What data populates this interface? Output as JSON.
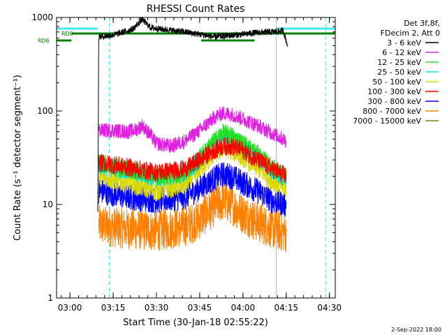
{
  "chart_data": {
    "type": "line",
    "title": "RHESSI Count Rates",
    "xlabel": "Start Time (30-Jan-18 02:55:22)",
    "ylabel": "Count Rate (s⁻¹ detector segment⁻¹)",
    "y_scale": "log",
    "ylim": [
      1,
      1000
    ],
    "xlim": [
      "02:55:22",
      "04:32:00"
    ],
    "x_ticks": [
      "03:00",
      "03:15",
      "03:30",
      "03:45",
      "04:00",
      "04:15",
      "04:30"
    ],
    "y_ticks": [
      "1",
      "10",
      "100",
      "1000"
    ],
    "footer_date": "2-Sep-2022 18:00",
    "legend": {
      "placement": "right",
      "header": [
        "Det 3f,8f,",
        "FDecim 2, Att 0"
      ],
      "entries": [
        {
          "label": "3 - 6 keV",
          "color": "#000000"
        },
        {
          "label": "6 - 12 keV",
          "color": "#e020e0"
        },
        {
          "label": "12 - 25 keV",
          "color": "#20e020"
        },
        {
          "label": "25 - 50 keV",
          "color": "#00e0e0"
        },
        {
          "label": "50 - 100 keV",
          "color": "#d8d800"
        },
        {
          "label": "100 - 300 keV",
          "color": "#ff0000"
        },
        {
          "label": "300 - 800 keV",
          "color": "#0000ff"
        },
        {
          "label": "800 - 7000 keV",
          "color": "#ff8000"
        },
        {
          "label": "7000 - 15000 keV",
          "color": "#808000"
        }
      ]
    },
    "annotations": [
      {
        "text": "RD0",
        "color": "#008000"
      },
      {
        "text": "RD6",
        "color": "#008000"
      }
    ],
    "series": [
      {
        "name": "3 - 6 keV",
        "color": "#000000",
        "x": [
          "03:09:40",
          "03:10:00",
          "03:15:00",
          "03:20:00",
          "03:22:00",
          "03:25:00",
          "03:28:00",
          "03:30:00",
          "03:40:00",
          "03:50:00",
          "04:00:00",
          "04:05:00",
          "04:10:00",
          "04:14:00",
          "04:15:30"
        ],
        "y": [
          8,
          620,
          650,
          720,
          760,
          950,
          780,
          760,
          700,
          620,
          660,
          690,
          700,
          720,
          500
        ]
      },
      {
        "name": "6 - 12 keV",
        "color": "#e020e0",
        "x": [
          "03:10:00",
          "03:15:00",
          "03:20:00",
          "03:23:00",
          "03:25:00",
          "03:28:00",
          "03:30:00",
          "03:35:00",
          "03:40:00",
          "03:45:00",
          "03:50:00",
          "03:53:00",
          "03:56:00",
          "04:00:00",
          "04:05:00",
          "04:10:00",
          "04:15:00"
        ],
        "y": [
          62,
          62,
          60,
          63,
          70,
          55,
          45,
          42,
          48,
          62,
          85,
          95,
          92,
          82,
          70,
          58,
          48
        ]
      },
      {
        "name": "12 - 25 keV",
        "color": "#20e020",
        "x": [
          "03:10:00",
          "03:20:00",
          "03:30:00",
          "03:40:00",
          "03:45:00",
          "03:50:00",
          "03:53:00",
          "03:56:00",
          "04:00:00",
          "04:05:00",
          "04:10:00",
          "04:15:00"
        ],
        "y": [
          28,
          24,
          20,
          22,
          32,
          48,
          58,
          55,
          45,
          35,
          25,
          20
        ]
      },
      {
        "name": "25 - 50 keV",
        "color": "#00e0e0",
        "x": [
          "03:10:00",
          "03:20:00",
          "03:30:00",
          "03:40:00",
          "03:45:00",
          "03:50:00",
          "03:53:00",
          "03:56:00",
          "04:00:00",
          "04:05:00",
          "04:10:00",
          "04:15:00"
        ],
        "y": [
          26,
          23,
          19,
          21,
          30,
          44,
          52,
          50,
          42,
          33,
          23,
          19
        ]
      },
      {
        "name": "50 - 100 keV",
        "color": "#d8d800",
        "x": [
          "03:10:00",
          "03:20:00",
          "03:30:00",
          "03:40:00",
          "03:45:00",
          "03:50:00",
          "03:53:00",
          "03:56:00",
          "04:00:00",
          "04:05:00",
          "04:10:00",
          "04:15:00"
        ],
        "y": [
          20,
          17,
          14,
          16,
          24,
          35,
          40,
          38,
          32,
          25,
          18,
          15
        ]
      },
      {
        "name": "100 - 300 keV",
        "color": "#ff0000",
        "x": [
          "03:10:00",
          "03:20:00",
          "03:30:00",
          "03:40:00",
          "03:45:00",
          "03:50:00",
          "03:53:00",
          "03:56:00",
          "04:00:00",
          "04:05:00",
          "04:10:00",
          "04:15:00"
        ],
        "y": [
          28,
          25,
          22,
          24,
          30,
          38,
          42,
          42,
          38,
          30,
          24,
          20
        ]
      },
      {
        "name": "300 - 800 keV",
        "color": "#0000ff",
        "x": [
          "03:10:00",
          "03:20:00",
          "03:30:00",
          "03:40:00",
          "03:45:00",
          "03:50:00",
          "03:53:00",
          "03:56:00",
          "04:00:00",
          "04:05:00",
          "04:10:00",
          "04:15:00"
        ],
        "y": [
          14,
          12,
          11,
          12,
          15,
          19,
          21,
          20,
          17,
          14,
          11,
          10
        ]
      },
      {
        "name": "800 - 7000 keV",
        "color": "#ff8000",
        "x": [
          "03:10:00",
          "03:20:00",
          "03:30:00",
          "03:40:00",
          "03:45:00",
          "03:50:00",
          "03:53:00",
          "03:56:00",
          "04:00:00",
          "04:05:00",
          "04:10:00",
          "04:15:00"
        ],
        "y": [
          6,
          5.5,
          5.2,
          5.8,
          7,
          9.5,
          11,
          10,
          8,
          6.5,
          5.5,
          5
        ]
      },
      {
        "name": "7000 - 15000 keV",
        "color": "#808000",
        "x": [],
        "y": []
      }
    ]
  }
}
